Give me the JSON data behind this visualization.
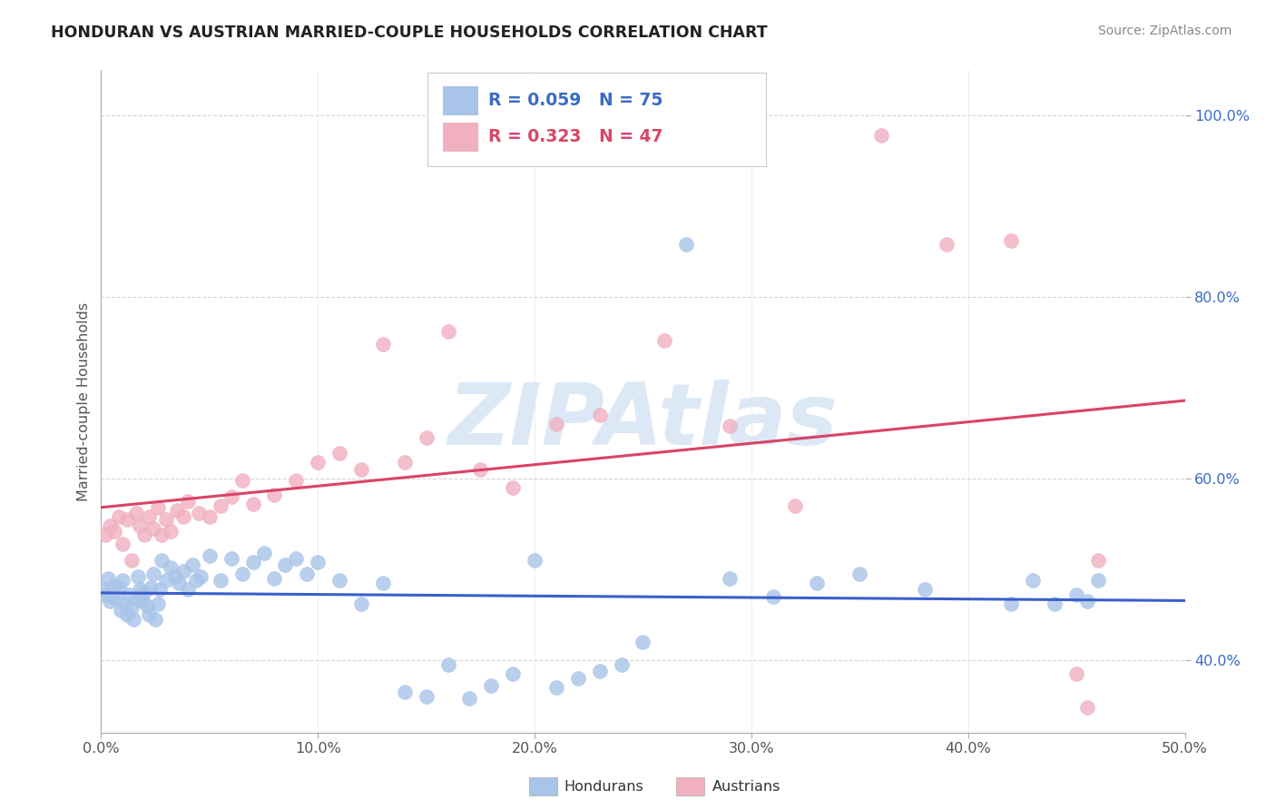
{
  "title": "HONDURAN VS AUSTRIAN MARRIED-COUPLE HOUSEHOLDS CORRELATION CHART",
  "source": "Source: ZipAtlas.com",
  "ylabel": "Married-couple Households",
  "xlim": [
    0.0,
    0.5
  ],
  "ylim": [
    0.32,
    1.05
  ],
  "xtick_labels": [
    "0.0%",
    "10.0%",
    "20.0%",
    "30.0%",
    "40.0%",
    "50.0%"
  ],
  "xtick_vals": [
    0.0,
    0.1,
    0.2,
    0.3,
    0.4,
    0.5
  ],
  "ytick_labels": [
    "40.0%",
    "60.0%",
    "80.0%",
    "100.0%"
  ],
  "ytick_vals": [
    0.4,
    0.6,
    0.8,
    1.0
  ],
  "honduran_R": 0.059,
  "honduran_N": 75,
  "austrian_R": 0.323,
  "austrian_N": 47,
  "blue_color": "#a8c4e8",
  "pink_color": "#f0b0c0",
  "blue_line_color": "#3a5fcc",
  "pink_line_color": "#d94466",
  "legend_blue_text_color": "#3a6bc4",
  "legend_pink_text_color": "#d94466",
  "ytick_color": "#3a6bc4",
  "xtick_color": "#555555",
  "watermark": "ZIPAtlas",
  "watermark_color": "#dce8f5",
  "background_color": "#ffffff",
  "grid_color": "#cccccc",
  "title_color": "#222222",
  "honduran_x": [
    0.001,
    0.002,
    0.003,
    0.004,
    0.005,
    0.006,
    0.007,
    0.008,
    0.009,
    0.01,
    0.011,
    0.012,
    0.013,
    0.014,
    0.015,
    0.016,
    0.017,
    0.018,
    0.019,
    0.02,
    0.021,
    0.022,
    0.023,
    0.024,
    0.025,
    0.026,
    0.027,
    0.028,
    0.03,
    0.032,
    0.034,
    0.036,
    0.038,
    0.04,
    0.042,
    0.044,
    0.046,
    0.05,
    0.055,
    0.06,
    0.065,
    0.07,
    0.075,
    0.08,
    0.085,
    0.09,
    0.095,
    0.1,
    0.11,
    0.12,
    0.13,
    0.14,
    0.15,
    0.16,
    0.17,
    0.18,
    0.19,
    0.2,
    0.21,
    0.22,
    0.23,
    0.24,
    0.25,
    0.27,
    0.29,
    0.31,
    0.33,
    0.35,
    0.38,
    0.42,
    0.43,
    0.44,
    0.45,
    0.455,
    0.46
  ],
  "honduran_y": [
    0.478,
    0.472,
    0.49,
    0.465,
    0.47,
    0.482,
    0.468,
    0.48,
    0.455,
    0.488,
    0.462,
    0.45,
    0.472,
    0.458,
    0.445,
    0.468,
    0.492,
    0.478,
    0.465,
    0.475,
    0.46,
    0.45,
    0.48,
    0.495,
    0.445,
    0.462,
    0.478,
    0.51,
    0.488,
    0.502,
    0.492,
    0.485,
    0.498,
    0.478,
    0.505,
    0.488,
    0.492,
    0.515,
    0.488,
    0.512,
    0.495,
    0.508,
    0.518,
    0.49,
    0.505,
    0.512,
    0.495,
    0.508,
    0.488,
    0.462,
    0.485,
    0.365,
    0.36,
    0.395,
    0.358,
    0.372,
    0.385,
    0.51,
    0.37,
    0.38,
    0.388,
    0.395,
    0.42,
    0.858,
    0.49,
    0.47,
    0.485,
    0.495,
    0.478,
    0.462,
    0.488,
    0.462,
    0.472,
    0.465,
    0.488
  ],
  "austrian_x": [
    0.002,
    0.004,
    0.006,
    0.008,
    0.01,
    0.012,
    0.014,
    0.016,
    0.018,
    0.02,
    0.022,
    0.024,
    0.026,
    0.028,
    0.03,
    0.032,
    0.035,
    0.038,
    0.04,
    0.045,
    0.05,
    0.055,
    0.06,
    0.065,
    0.07,
    0.08,
    0.09,
    0.1,
    0.11,
    0.12,
    0.13,
    0.14,
    0.15,
    0.16,
    0.175,
    0.19,
    0.21,
    0.23,
    0.26,
    0.29,
    0.32,
    0.36,
    0.39,
    0.42,
    0.45,
    0.455,
    0.46
  ],
  "austrian_y": [
    0.538,
    0.548,
    0.542,
    0.558,
    0.528,
    0.555,
    0.51,
    0.562,
    0.548,
    0.538,
    0.558,
    0.545,
    0.568,
    0.538,
    0.555,
    0.542,
    0.565,
    0.558,
    0.575,
    0.562,
    0.558,
    0.57,
    0.58,
    0.598,
    0.572,
    0.582,
    0.598,
    0.618,
    0.628,
    0.61,
    0.748,
    0.618,
    0.645,
    0.762,
    0.61,
    0.59,
    0.66,
    0.67,
    0.752,
    0.658,
    0.57,
    0.978,
    0.858,
    0.862,
    0.385,
    0.348,
    0.51
  ]
}
